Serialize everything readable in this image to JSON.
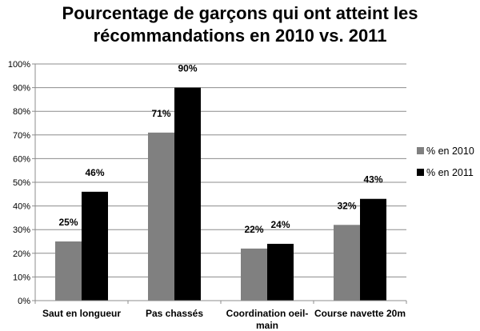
{
  "chart_data": {
    "type": "bar",
    "title_lines": [
      "Pourcentage de garçons qui ont atteint les",
      "récommandations en 2010 vs. 2011"
    ],
    "categories": [
      [
        "Saut en longueur"
      ],
      [
        "Pas chassés"
      ],
      [
        "Coordination oeil-",
        "main"
      ],
      [
        "Course navette 20m"
      ]
    ],
    "series": [
      {
        "name": "% en 2010",
        "values": [
          25,
          71,
          22,
          32
        ],
        "labels": [
          "25%",
          "71%",
          "22%",
          "32%"
        ],
        "color": "#808080"
      },
      {
        "name": "% en 2011",
        "values": [
          46,
          90,
          24,
          43
        ],
        "labels": [
          "46%",
          "90%",
          "24%",
          "43%"
        ],
        "color": "#000000"
      }
    ],
    "ylim": [
      0,
      100
    ],
    "yticks": [
      0,
      10,
      20,
      30,
      40,
      50,
      60,
      70,
      80,
      90,
      100
    ],
    "ytick_labels": [
      "0%",
      "10%",
      "20%",
      "30%",
      "40%",
      "50%",
      "60%",
      "70%",
      "80%",
      "90%",
      "100%"
    ],
    "grid": true,
    "legend_position": "right",
    "colors": {
      "grid": "#8c8c8c",
      "axis": "#8c8c8c"
    }
  }
}
